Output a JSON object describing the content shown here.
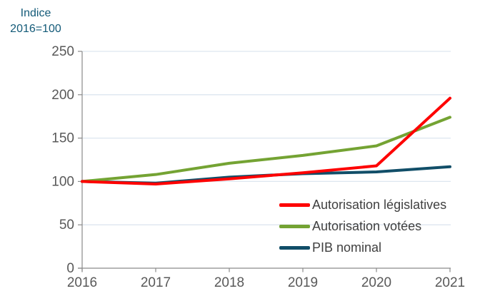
{
  "title": {
    "line1": "Indice",
    "line2": "2016=100"
  },
  "chart_data": {
    "type": "line",
    "title": "Indice 2016=100",
    "categories": [
      "2016",
      "2017",
      "2018",
      "2019",
      "2020",
      "2021"
    ],
    "series": [
      {
        "name": "Autorisation législatives",
        "color": "#fe0000",
        "values": [
          100,
          97,
          103,
          110,
          118,
          196
        ]
      },
      {
        "name": "Autorisation votées",
        "color": "#74a333",
        "values": [
          100,
          108,
          121,
          130,
          141,
          174
        ]
      },
      {
        "name": "PIB nominal",
        "color": "#114e68",
        "values": [
          100,
          98,
          105,
          109,
          111,
          117
        ]
      }
    ],
    "xlabel": "",
    "ylabel": "Indice 2016=100",
    "ylim": [
      0,
      250
    ],
    "yticks": [
      "0",
      "50",
      "100",
      "150",
      "200",
      "250"
    ],
    "grid": true,
    "legend_position": "inside-bottom-right",
    "colors": {
      "title_text": "#135a78",
      "axis_text": "#595959",
      "legend_text": "#404040",
      "gridline": "#dde6ef",
      "axis_line": "#8a8a8a"
    }
  }
}
